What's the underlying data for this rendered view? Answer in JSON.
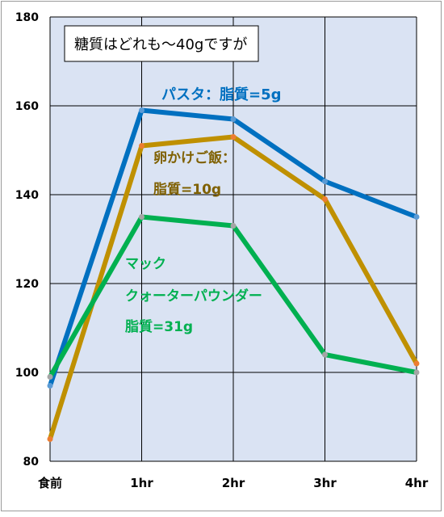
{
  "chart_data": {
    "type": "line",
    "categories": [
      "食前",
      "1hr",
      "2hr",
      "3hr",
      "4hr"
    ],
    "ylim": [
      80,
      180
    ],
    "yticks": [
      80,
      100,
      120,
      140,
      160,
      180
    ],
    "grid": true,
    "plot_bg": "#dae3f3",
    "series": [
      {
        "name": "パスタ：脂質=5g",
        "color": "#0070c0",
        "values": [
          97,
          159,
          157,
          143,
          135
        ]
      },
      {
        "name": "卵かけご飯：脂質=10g",
        "color": "#bf9000",
        "values": [
          85,
          151,
          153,
          139,
          102
        ]
      },
      {
        "name": "マック クォーターパウンダー 脂質=31g",
        "color": "#00b050",
        "values": [
          99,
          135,
          133,
          104,
          100
        ]
      }
    ],
    "annotations": {
      "note": "糖質はどれも～40gですが",
      "pasta": "パスタ：脂質=5g",
      "egg_line1": "卵かけご飯：",
      "egg_line2": "脂質=10g",
      "mac_line1": "マック",
      "mac_line2": "クォーターパウンダー",
      "mac_line3": "脂質=31g"
    }
  }
}
